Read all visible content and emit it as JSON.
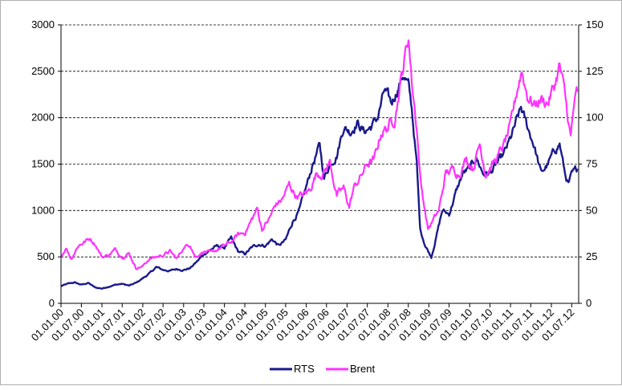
{
  "chart_data": {
    "type": "line",
    "x_tick_labels": [
      "01.01.00",
      "01.07.00",
      "01.01.01",
      "01.07.01",
      "01.01.02",
      "01.07.02",
      "01.01.03",
      "01.07.03",
      "01.01.04",
      "01.07.04",
      "01.01.05",
      "01.07.05",
      "01.01.06",
      "01.07.06",
      "01.01.07",
      "01.07.07",
      "01.01.08",
      "01.07.08",
      "01.01.09",
      "01.07.09",
      "01.01.10",
      "01.07.10",
      "01.01.11",
      "01.07.11",
      "01.01.12",
      "01.07.12"
    ],
    "y_left": {
      "ticks": [
        0,
        500,
        1000,
        1500,
        2000,
        2500,
        3000
      ],
      "range": [
        0,
        3000
      ]
    },
    "y_right": {
      "ticks": [
        0,
        25,
        50,
        75,
        100,
        125,
        150
      ],
      "range": [
        0,
        150
      ]
    },
    "grid": true,
    "legend_position": "bottom",
    "series": [
      {
        "name": "RTS",
        "axis": "left",
        "color": "#1a1a8c",
        "points": [
          [
            "2000-01-01",
            185
          ],
          [
            "2000-03-01",
            210
          ],
          [
            "2000-05-01",
            225
          ],
          [
            "2000-07-01",
            200
          ],
          [
            "2000-09-01",
            220
          ],
          [
            "2000-11-01",
            170
          ],
          [
            "2001-01-01",
            160
          ],
          [
            "2001-03-01",
            180
          ],
          [
            "2001-05-01",
            200
          ],
          [
            "2001-07-01",
            210
          ],
          [
            "2001-09-01",
            190
          ],
          [
            "2001-11-01",
            220
          ],
          [
            "2002-01-01",
            270
          ],
          [
            "2002-03-01",
            320
          ],
          [
            "2002-05-01",
            390
          ],
          [
            "2002-07-01",
            360
          ],
          [
            "2002-09-01",
            350
          ],
          [
            "2002-11-01",
            370
          ],
          [
            "2003-01-01",
            360
          ],
          [
            "2003-03-01",
            380
          ],
          [
            "2003-05-01",
            450
          ],
          [
            "2003-07-01",
            530
          ],
          [
            "2003-09-01",
            580
          ],
          [
            "2003-11-01",
            620
          ],
          [
            "2004-01-01",
            600
          ],
          [
            "2004-03-01",
            700
          ],
          [
            "2004-05-01",
            560
          ],
          [
            "2004-07-01",
            530
          ],
          [
            "2004-09-01",
            600
          ],
          [
            "2004-11-01",
            640
          ],
          [
            "2005-01-01",
            620
          ],
          [
            "2005-03-01",
            690
          ],
          [
            "2005-05-01",
            620
          ],
          [
            "2005-07-01",
            680
          ],
          [
            "2005-09-01",
            880
          ],
          [
            "2005-11-01",
            1000
          ],
          [
            "2006-01-01",
            1250
          ],
          [
            "2006-03-01",
            1500
          ],
          [
            "2006-05-01",
            1700
          ],
          [
            "2006-06-10",
            1350
          ],
          [
            "2006-08-01",
            1500
          ],
          [
            "2006-10-01",
            1600
          ],
          [
            "2006-12-01",
            1900
          ],
          [
            "2007-02-01",
            1850
          ],
          [
            "2007-04-01",
            1950
          ],
          [
            "2007-06-01",
            1850
          ],
          [
            "2007-08-01",
            1900
          ],
          [
            "2007-10-01",
            2000
          ],
          [
            "2007-12-01",
            2290
          ],
          [
            "2008-02-01",
            2150
          ],
          [
            "2008-05-19",
            2470
          ],
          [
            "2008-07-01",
            2350
          ],
          [
            "2008-08-01",
            2100
          ],
          [
            "2008-09-15",
            1500
          ],
          [
            "2008-10-15",
            800
          ],
          [
            "2008-12-01",
            620
          ],
          [
            "2009-01-23",
            500
          ],
          [
            "2009-03-01",
            680
          ],
          [
            "2009-05-01",
            1000
          ],
          [
            "2009-07-01",
            960
          ],
          [
            "2009-09-01",
            1200
          ],
          [
            "2009-11-01",
            1400
          ],
          [
            "2010-01-01",
            1450
          ],
          [
            "2010-03-01",
            1570
          ],
          [
            "2010-05-01",
            1400
          ],
          [
            "2010-07-01",
            1400
          ],
          [
            "2010-09-01",
            1500
          ],
          [
            "2010-11-01",
            1600
          ],
          [
            "2011-01-01",
            1770
          ],
          [
            "2011-04-05",
            2100
          ],
          [
            "2011-06-01",
            1900
          ],
          [
            "2011-08-01",
            1700
          ],
          [
            "2011-10-01",
            1400
          ],
          [
            "2011-12-01",
            1500
          ],
          [
            "2012-02-01",
            1650
          ],
          [
            "2012-03-15",
            1720
          ],
          [
            "2012-05-01",
            1400
          ],
          [
            "2012-06-01",
            1280
          ],
          [
            "2012-07-01",
            1380
          ],
          [
            "2012-08-20",
            1450
          ]
        ]
      },
      {
        "name": "Brent",
        "axis": "right",
        "color": "#ff33ff",
        "points": [
          [
            "2000-01-01",
            25
          ],
          [
            "2000-02-15",
            30
          ],
          [
            "2000-04-01",
            24
          ],
          [
            "2000-06-01",
            31
          ],
          [
            "2000-09-15",
            35
          ],
          [
            "2000-11-01",
            32
          ],
          [
            "2001-01-01",
            25
          ],
          [
            "2001-03-01",
            26
          ],
          [
            "2001-05-01",
            29
          ],
          [
            "2001-07-01",
            25
          ],
          [
            "2001-09-01",
            27
          ],
          [
            "2001-11-01",
            19
          ],
          [
            "2002-01-01",
            20
          ],
          [
            "2002-03-01",
            24
          ],
          [
            "2002-05-01",
            25
          ],
          [
            "2002-07-01",
            26
          ],
          [
            "2002-09-01",
            28
          ],
          [
            "2002-11-01",
            24
          ],
          [
            "2003-01-01",
            30
          ],
          [
            "2003-03-01",
            32
          ],
          [
            "2003-04-15",
            25
          ],
          [
            "2003-07-01",
            28
          ],
          [
            "2003-09-01",
            27
          ],
          [
            "2003-11-01",
            29
          ],
          [
            "2004-01-01",
            31
          ],
          [
            "2004-03-01",
            33
          ],
          [
            "2004-05-01",
            37
          ],
          [
            "2004-07-01",
            38
          ],
          [
            "2004-09-01",
            45
          ],
          [
            "2004-10-20",
            51
          ],
          [
            "2004-12-01",
            40
          ],
          [
            "2005-02-01",
            45
          ],
          [
            "2005-04-01",
            53
          ],
          [
            "2005-06-01",
            56
          ],
          [
            "2005-08-01",
            64
          ],
          [
            "2005-10-01",
            58
          ],
          [
            "2005-12-01",
            58
          ],
          [
            "2006-02-01",
            61
          ],
          [
            "2006-04-01",
            70
          ],
          [
            "2006-06-01",
            70
          ],
          [
            "2006-08-01",
            76
          ],
          [
            "2006-10-01",
            58
          ],
          [
            "2006-12-01",
            62
          ],
          [
            "2007-01-20",
            52
          ],
          [
            "2007-03-01",
            62
          ],
          [
            "2007-05-01",
            68
          ],
          [
            "2007-07-01",
            75
          ],
          [
            "2007-09-01",
            77
          ],
          [
            "2007-11-01",
            92
          ],
          [
            "2008-01-01",
            95
          ],
          [
            "2008-03-01",
            100
          ],
          [
            "2008-05-01",
            122
          ],
          [
            "2008-07-03",
            144
          ],
          [
            "2008-08-01",
            120
          ],
          [
            "2008-09-15",
            95
          ],
          [
            "2008-10-20",
            65
          ],
          [
            "2008-12-24",
            40
          ],
          [
            "2009-02-01",
            44
          ],
          [
            "2009-04-01",
            50
          ],
          [
            "2009-06-01",
            70
          ],
          [
            "2009-08-01",
            72
          ],
          [
            "2009-10-01",
            70
          ],
          [
            "2009-12-01",
            78
          ],
          [
            "2010-02-01",
            73
          ],
          [
            "2010-04-01",
            86
          ],
          [
            "2010-05-25",
            70
          ],
          [
            "2010-07-01",
            73
          ],
          [
            "2010-09-01",
            78
          ],
          [
            "2010-11-01",
            85
          ],
          [
            "2011-01-01",
            95
          ],
          [
            "2011-03-01",
            115
          ],
          [
            "2011-04-10",
            126
          ],
          [
            "2011-06-01",
            112
          ],
          [
            "2011-08-01",
            107
          ],
          [
            "2011-10-01",
            110
          ],
          [
            "2011-12-01",
            108
          ],
          [
            "2012-02-01",
            118
          ],
          [
            "2012-03-15",
            128
          ],
          [
            "2012-05-01",
            112
          ],
          [
            "2012-06-22",
            89
          ],
          [
            "2012-07-20",
            106
          ],
          [
            "2012-08-20",
            114
          ]
        ]
      }
    ]
  }
}
